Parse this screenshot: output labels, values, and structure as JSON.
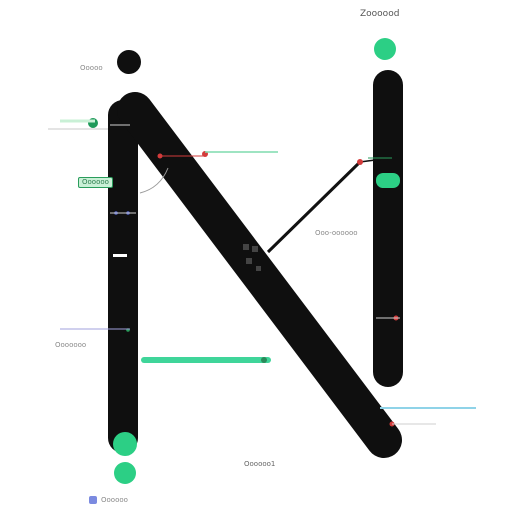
{
  "title": "Zoooood",
  "labels": {
    "top_left": "Ooooo",
    "upper_tag": "Oooooo",
    "mid_right": "Ooo-oooooo",
    "lower_left": "Ooooooo",
    "bottom_center": "Oooooo1",
    "legend": "Oooooo"
  },
  "colors": {
    "stroke": "#0f0f0f",
    "accent_green": "#2ccf85",
    "accent_red": "#d33b3b",
    "accent_blue": "#5566cc",
    "tag_green": "#c9f0d6"
  }
}
